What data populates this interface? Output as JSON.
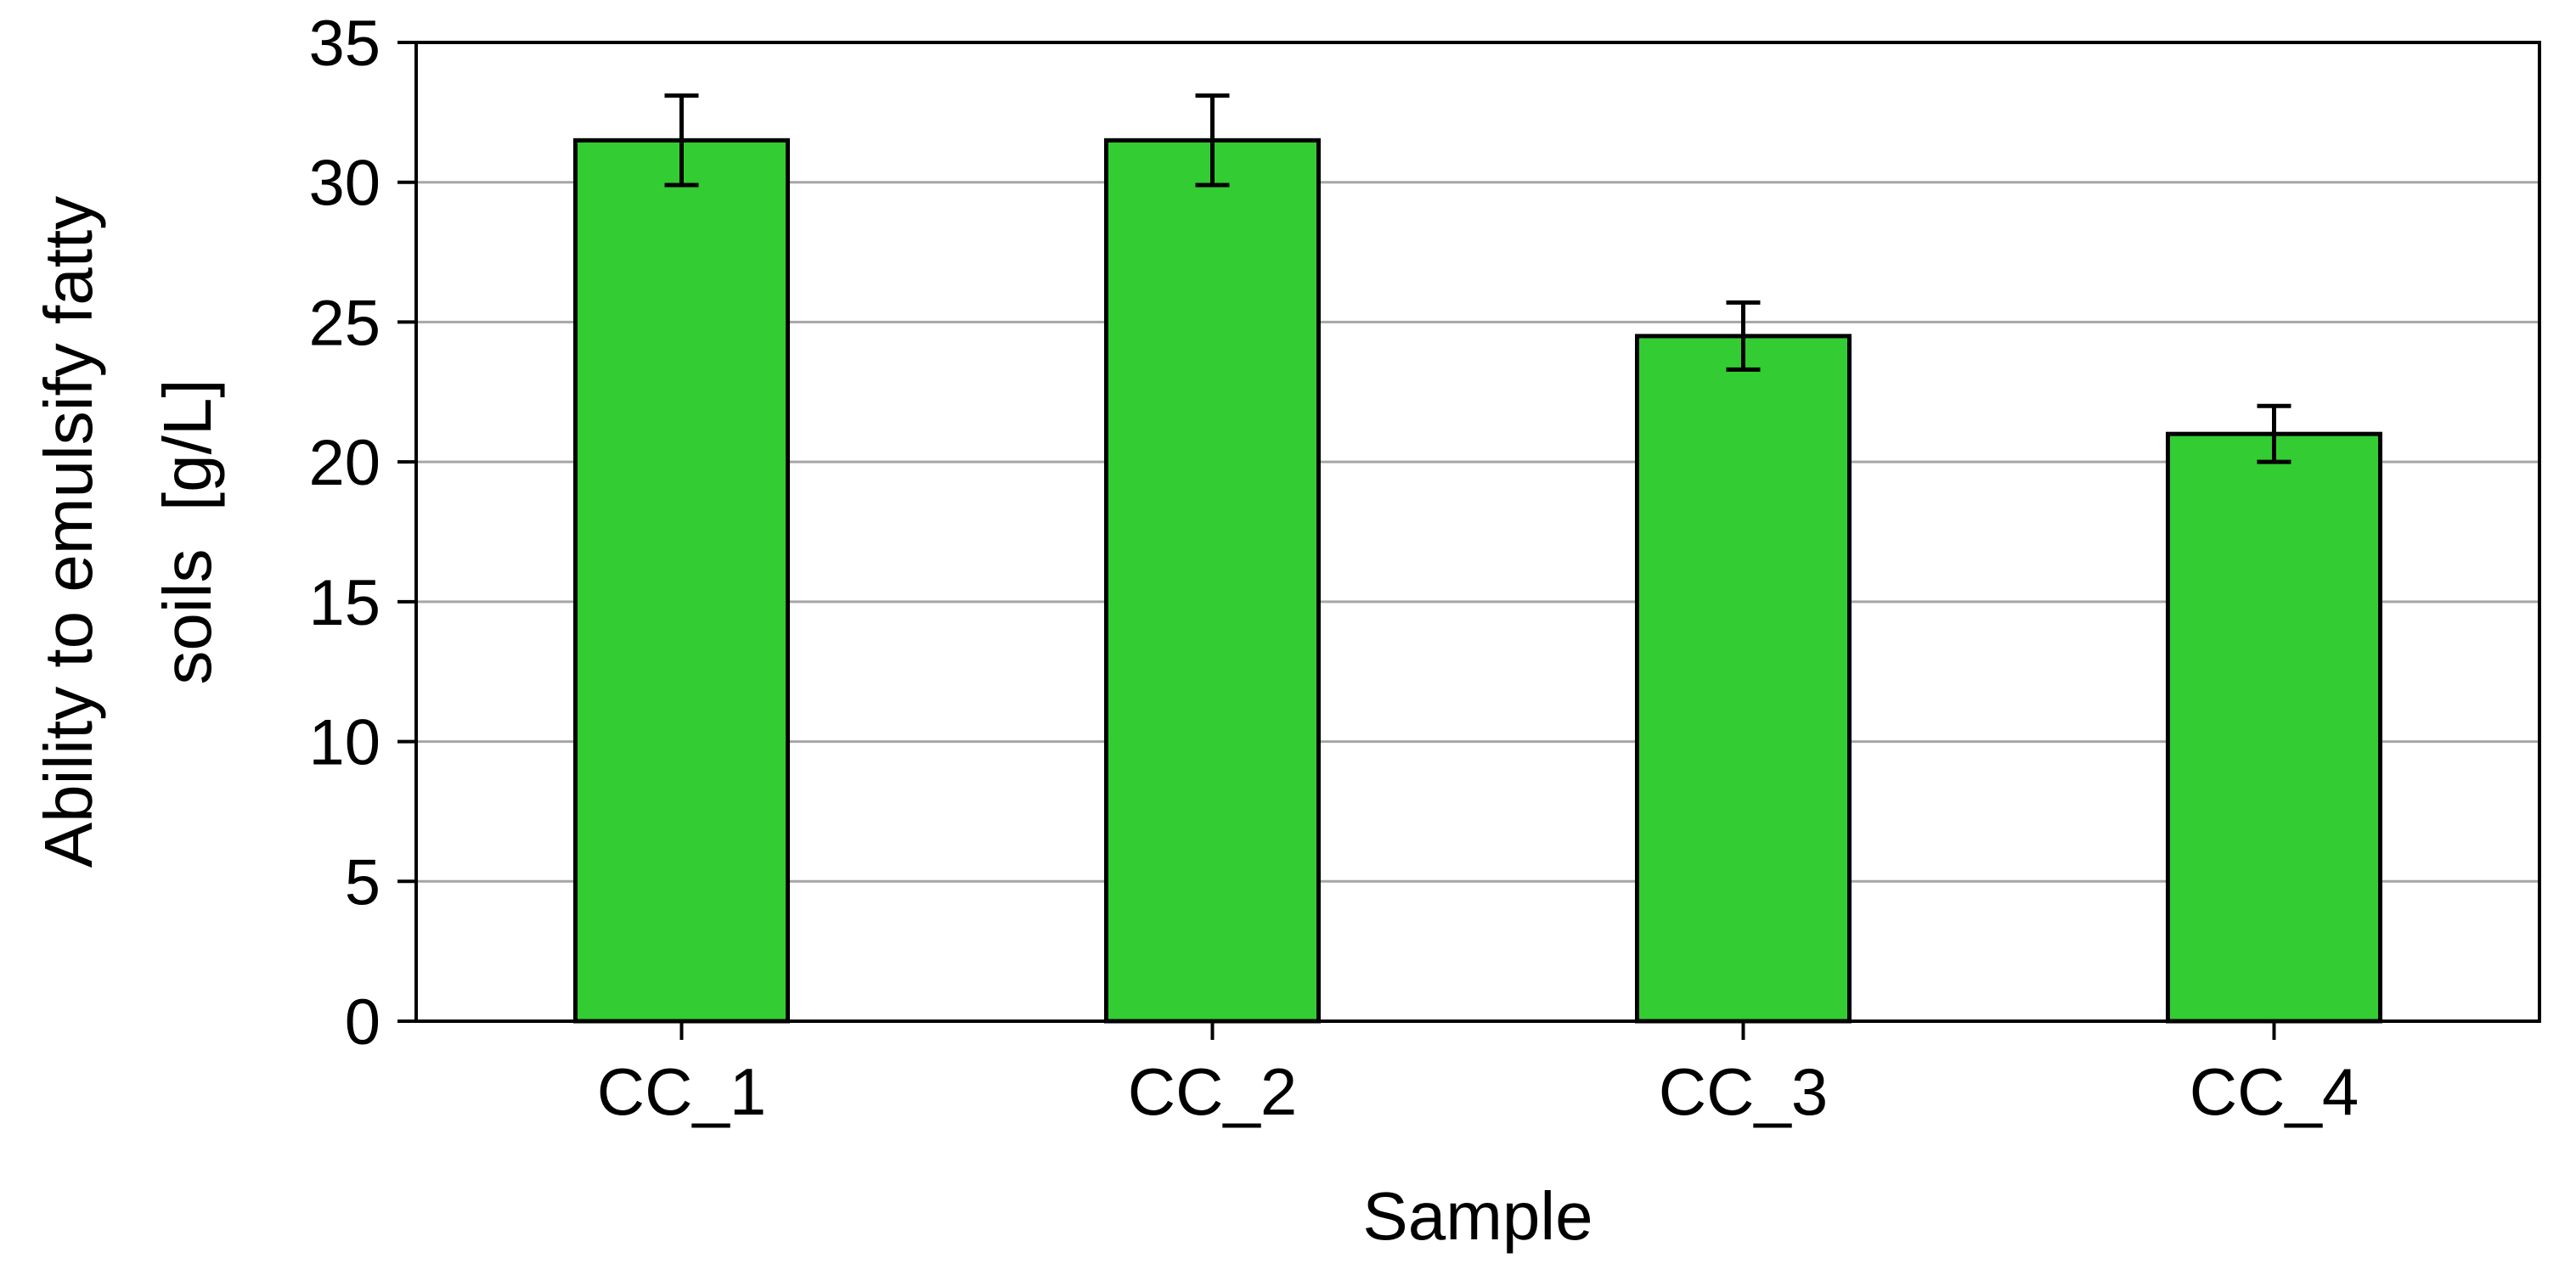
{
  "chart_data": {
    "type": "bar",
    "categories": [
      "CC_1",
      "CC_2",
      "CC_3",
      "CC_4"
    ],
    "values": [
      31.5,
      31.5,
      24.5,
      21.0
    ],
    "error": [
      1.6,
      1.6,
      1.2,
      1.0
    ],
    "xlabel": "Sample",
    "ylabel_lines": [
      "Ability to emulsify fatty",
      "soils  [g/L]"
    ],
    "ylim": [
      0,
      35
    ],
    "yticks": [
      0,
      5,
      10,
      15,
      20,
      25,
      30,
      35
    ],
    "grid": true,
    "legend": "none",
    "bar_color": "#33cc33",
    "bar_edge_color": "#000000",
    "grid_color": "#a6a6a6"
  }
}
